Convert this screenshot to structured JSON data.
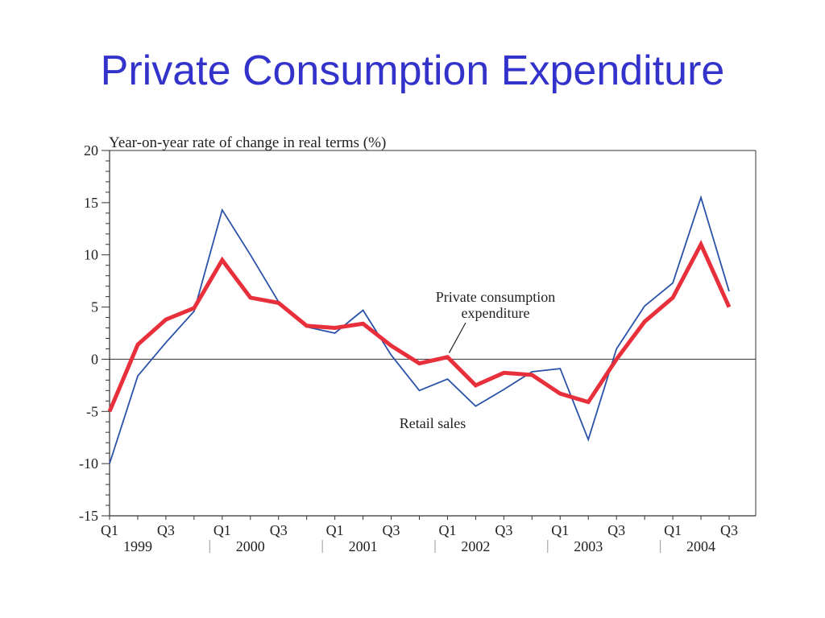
{
  "title": "Private Consumption Expenditure",
  "chart_data": {
    "type": "line",
    "subtitle": "Year-on-year rate of change in real terms (%)",
    "ylim": [
      -15,
      20
    ],
    "yticks": [
      20,
      15,
      10,
      5,
      0,
      -5,
      -10,
      -15
    ],
    "quarter_labels": [
      "Q1",
      "Q3",
      "Q1",
      "Q3",
      "Q1",
      "Q3",
      "Q1",
      "Q3",
      "Q1",
      "Q3",
      "Q1",
      "Q3"
    ],
    "years": [
      "1999",
      "2000",
      "2001",
      "2002",
      "2003",
      "2004"
    ],
    "x": [
      "1999 Q1",
      "1999 Q2",
      "1999 Q3",
      "1999 Q4",
      "2000 Q1",
      "2000 Q2",
      "2000 Q3",
      "2000 Q4",
      "2001 Q1",
      "2001 Q2",
      "2001 Q3",
      "2001 Q4",
      "2002 Q1",
      "2002 Q2",
      "2002 Q3",
      "2002 Q4",
      "2003 Q1",
      "2003 Q2",
      "2003 Q3",
      "2003 Q4",
      "2004 Q1",
      "2004 Q2",
      "2004 Q3"
    ],
    "series": [
      {
        "name": "Private consumption expenditure",
        "color": "#e8303c",
        "values": [
          -5.0,
          1.4,
          3.8,
          4.9,
          9.5,
          5.9,
          5.4,
          3.2,
          3.0,
          3.4,
          1.3,
          -0.4,
          0.2,
          -2.5,
          -1.3,
          -1.5,
          -3.3,
          -4.1,
          0.0,
          3.6,
          5.9,
          11.0,
          5.0
        ]
      },
      {
        "name": "Retail sales",
        "color": "#2a52a8",
        "values": [
          -10.0,
          -1.6,
          1.6,
          4.6,
          14.3,
          10.0,
          5.5,
          3.1,
          2.5,
          4.7,
          0.4,
          -3.0,
          -1.9,
          -4.5,
          -2.9,
          -1.2,
          -0.9,
          -7.7,
          1.0,
          5.1,
          7.3,
          15.5,
          6.5
        ]
      }
    ],
    "annotations": [
      {
        "text": [
          "Private consumption",
          "expenditure"
        ]
      },
      {
        "text": [
          "Retail sales"
        ]
      }
    ],
    "grid": false,
    "zero_line": true
  }
}
